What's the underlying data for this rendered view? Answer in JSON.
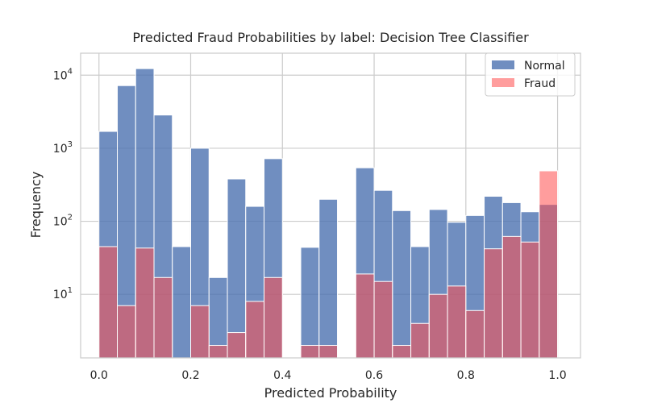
{
  "chart_data": {
    "type": "bar",
    "title": "Predicted Fraud Probabilities by label: Decision Tree Classifier",
    "xlabel": "Predicted Probability",
    "ylabel": "Frequency",
    "xlim": [
      -0.04,
      1.05
    ],
    "ylim": [
      1.35,
      20000
    ],
    "yscale": "log",
    "grid": true,
    "legend_position": "top-right",
    "x_ticks": [
      {
        "value": 0.0,
        "label": "0.0"
      },
      {
        "value": 0.2,
        "label": "0.2"
      },
      {
        "value": 0.4,
        "label": "0.4"
      },
      {
        "value": 0.6,
        "label": "0.6"
      },
      {
        "value": 0.8,
        "label": "0.8"
      },
      {
        "value": 1.0,
        "label": "1.0"
      }
    ],
    "y_ticks": [
      {
        "value": 10,
        "base": "10",
        "exp": "1"
      },
      {
        "value": 100,
        "base": "10",
        "exp": "2"
      },
      {
        "value": 1000,
        "base": "10",
        "exp": "3"
      },
      {
        "value": 10000,
        "base": "10",
        "exp": "4"
      }
    ],
    "bin_edges": [
      0.0,
      0.04,
      0.08,
      0.12,
      0.16,
      0.2,
      0.24,
      0.28,
      0.32,
      0.36,
      0.4,
      0.44,
      0.48,
      0.52,
      0.56,
      0.6,
      0.64,
      0.68,
      0.72,
      0.76,
      0.8,
      0.84,
      0.88,
      0.92,
      0.96,
      1.0
    ],
    "series": [
      {
        "name": "Normal",
        "color": "#4c72b0",
        "opacity": 0.8,
        "values": [
          1700,
          7200,
          12300,
          2850,
          45,
          1000,
          17,
          380,
          160,
          720,
          0,
          44,
          200,
          0,
          540,
          265,
          140,
          45,
          145,
          97,
          120,
          220,
          180,
          135,
          170
        ]
      },
      {
        "name": "Fraud",
        "color": "#ff4d4d",
        "opacity": 0.55,
        "values": [
          45,
          7,
          43,
          17,
          0,
          7,
          2,
          3,
          8,
          17,
          0,
          2,
          2,
          0,
          19,
          15,
          2,
          4,
          10,
          13,
          6,
          42,
          62,
          52,
          490
        ]
      }
    ]
  }
}
